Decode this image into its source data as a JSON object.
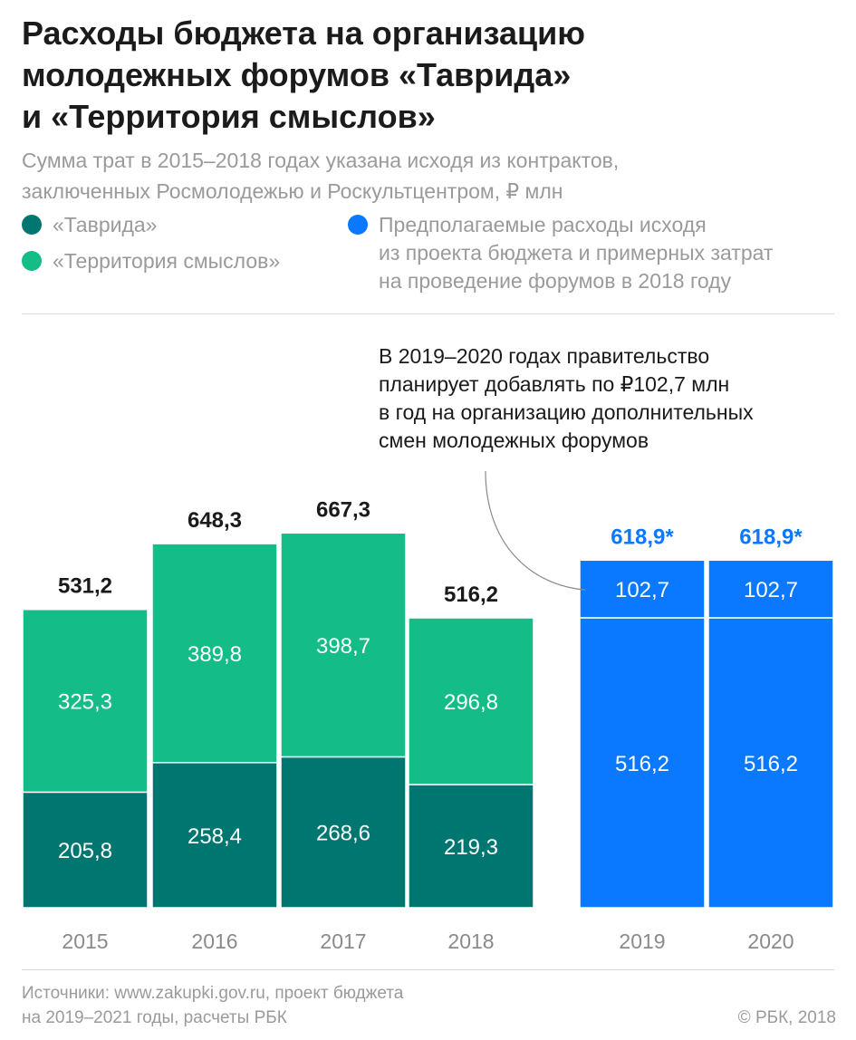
{
  "title_lines": [
    "Расходы бюджета на организацию",
    "молодежных форумов «Таврида»",
    "и «Территория смыслов»"
  ],
  "subtitle_lines": [
    "Сумма трат в 2015–2018 годах указана исходя из контрактов,",
    "заключенных Росмолодежью и Роскультцентром, ₽ млн"
  ],
  "legend": {
    "tavrida": {
      "label": "«Таврида»",
      "color": "#007671"
    },
    "territory": {
      "label": "«Территория смыслов»",
      "color": "#14bd88"
    },
    "planned": {
      "lines": [
        "Предполагаемые расходы исходя",
        "из проекта бюджета и примерных затрат",
        "на проведение форумов в 2018 году"
      ],
      "color": "#0a79ff"
    }
  },
  "annotation_lines": [
    "В 2019–2020 годах правительство",
    "планирует добавлять по ₽102,7 млн",
    "в год на организацию дополнительных",
    "смен молодежных форумов"
  ],
  "chart_data": {
    "type": "bar",
    "stacked": true,
    "categories": [
      "2015",
      "2016",
      "2017",
      "2018",
      "2019",
      "2020"
    ],
    "series": [
      {
        "key": "tavrida",
        "values": [
          205.8,
          258.4,
          268.6,
          219.3,
          null,
          null
        ],
        "labels": [
          "205,8",
          "258,4",
          "268,6",
          "219,3",
          "",
          ""
        ],
        "color": "#007671"
      },
      {
        "key": "territory",
        "values": [
          325.3,
          389.8,
          398.7,
          296.8,
          null,
          null
        ],
        "labels": [
          "325,3",
          "389,8",
          "398,7",
          "296,8",
          "",
          ""
        ],
        "color": "#14bd88"
      },
      {
        "key": "planned_base",
        "values": [
          null,
          null,
          null,
          null,
          516.2,
          516.2
        ],
        "labels": [
          "",
          "",
          "",
          "",
          "516,2",
          "516,2"
        ],
        "color": "#0a79ff"
      },
      {
        "key": "planned_additional",
        "values": [
          null,
          null,
          null,
          null,
          102.7,
          102.7
        ],
        "labels": [
          "",
          "",
          "",
          "",
          "102,7",
          "102,7"
        ],
        "color": "#0a79ff"
      }
    ],
    "totals": [
      531.2,
      648.3,
      667.3,
      516.2,
      618.9,
      618.9
    ],
    "total_labels": [
      "531,2",
      "648,3",
      "667,3",
      "516,2",
      "618,9*",
      "618,9*"
    ],
    "total_label_colors": [
      "#1a1a1a",
      "#1a1a1a",
      "#1a1a1a",
      "#1a1a1a",
      "#0a79ff",
      "#0a79ff"
    ],
    "ylim": [
      0,
      700
    ],
    "grid": false,
    "legend_position": "top"
  },
  "source_lines": [
    "Источники: www.zakupki.gov.ru, проект бюджета",
    "на 2019–2021 годы, расчеты РБК"
  ],
  "copyright": "© РБК, 2018"
}
